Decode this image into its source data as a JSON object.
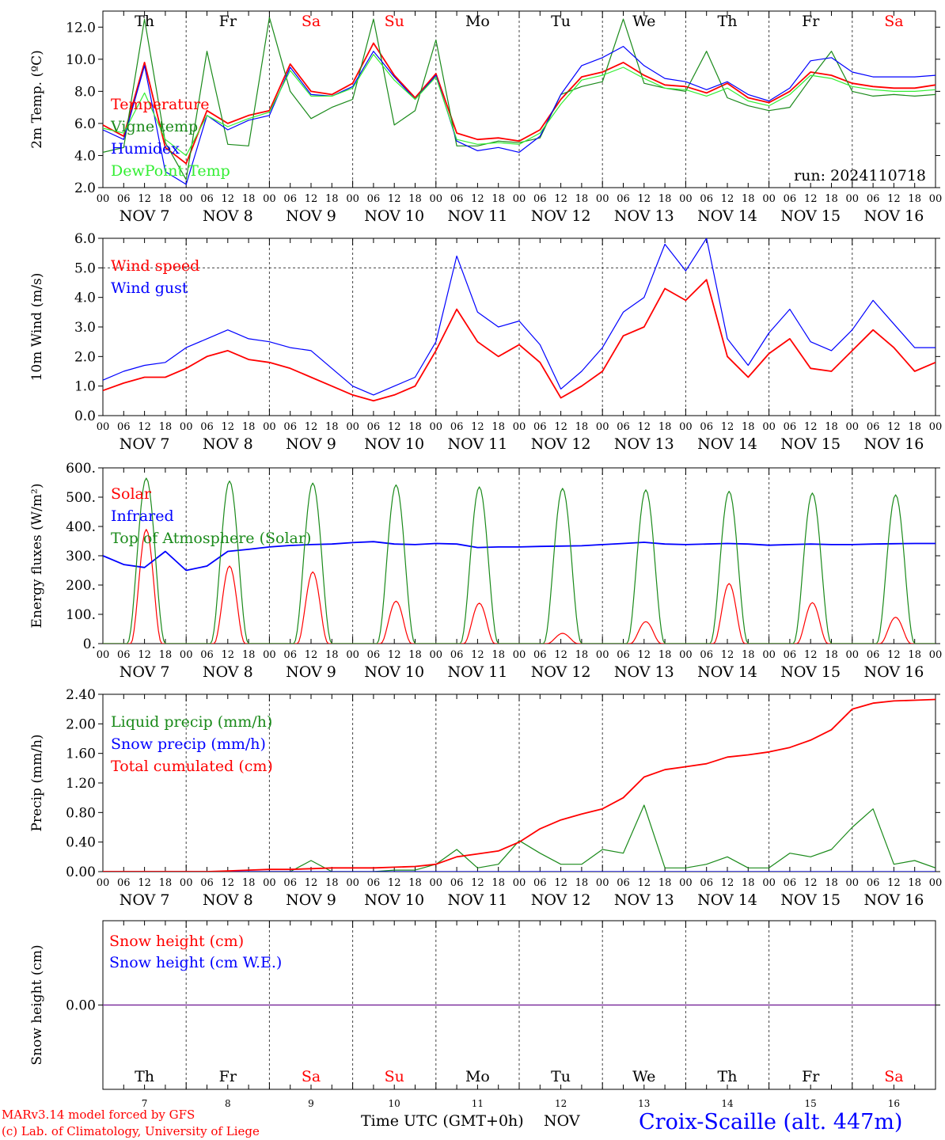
{
  "footer": {
    "credit_line1": "MARv3.14 model forced by GFS",
    "credit_line2": "(c) Lab. of Climatology, University of Liege",
    "xlabel": "Time UTC (GMT+0h)",
    "month": "NOV",
    "station": "Croix-Scaille (alt. 447m)"
  },
  "colors": {
    "red": "#ff0000",
    "green": "#1a8a1a",
    "blue": "#0000ff",
    "lightgreen": "#33ee33",
    "purple": "#7a2a9a",
    "axis": "#000000",
    "grid": "#555555"
  },
  "chart_data": [
    {
      "type": "line",
      "ylabel": "2m Temp. (ºC)",
      "ylim": [
        2.0,
        13.0
      ],
      "yticks": [
        "2.0",
        "4.0",
        "6.0",
        "8.0",
        "10.0",
        "12.0"
      ],
      "ytick_values": [
        2,
        4,
        6,
        8,
        10,
        12
      ],
      "dashed_lines": [],
      "annotation": "run: 2024110718",
      "x_hours": [
        0,
        6,
        12,
        18,
        24,
        30,
        36,
        42,
        48,
        54,
        60,
        66,
        72,
        78,
        84,
        90,
        96,
        102,
        108,
        114,
        120,
        126,
        132,
        138,
        144,
        150,
        156,
        162,
        168,
        174,
        180,
        186,
        192,
        198,
        204,
        210,
        216,
        222,
        228,
        234,
        240
      ],
      "series": [
        {
          "name": "Temperature",
          "color": "#ff0000",
          "values": [
            5.9,
            5.2,
            9.8,
            4.5,
            3.5,
            6.8,
            6.0,
            6.5,
            6.8,
            9.7,
            8.0,
            7.8,
            8.5,
            11.0,
            9.0,
            7.6,
            9.1,
            5.4,
            5.0,
            5.1,
            4.9,
            5.6,
            7.5,
            8.9,
            9.2,
            9.8,
            9.0,
            8.4,
            8.3,
            7.9,
            8.5,
            7.6,
            7.3,
            8.0,
            9.2,
            9.0,
            8.5,
            8.3,
            8.2,
            8.2,
            8.4
          ]
        },
        {
          "name": "Vigne temp",
          "color": "#1a8a1a",
          "values": [
            4.2,
            4.5,
            12.5,
            4.8,
            2.5,
            10.5,
            4.7,
            4.6,
            12.6,
            8.0,
            6.3,
            7.0,
            7.5,
            12.5,
            5.9,
            6.8,
            11.2,
            4.6,
            4.6,
            4.9,
            4.8,
            5.1,
            7.8,
            8.3,
            8.6,
            12.5,
            8.5,
            8.2,
            8.0,
            10.5,
            7.6,
            7.1,
            6.8,
            7.0,
            8.8,
            10.5,
            8.0,
            7.7,
            7.8,
            7.7,
            7.8
          ]
        },
        {
          "name": "Humidex",
          "color": "#0000ff",
          "values": [
            5.6,
            5.0,
            9.6,
            3.0,
            2.2,
            6.5,
            5.6,
            6.2,
            6.5,
            9.5,
            7.8,
            7.7,
            8.3,
            10.5,
            8.9,
            7.5,
            9.0,
            4.9,
            4.3,
            4.5,
            4.2,
            5.2,
            7.8,
            9.6,
            10.1,
            10.8,
            9.6,
            8.8,
            8.6,
            8.1,
            8.6,
            7.8,
            7.4,
            8.2,
            9.9,
            10.1,
            9.2,
            8.9,
            8.9,
            8.9,
            9.0
          ]
        },
        {
          "name": "DewPoint Temp",
          "color": "#33ee33",
          "values": [
            5.7,
            5.4,
            7.9,
            5.0,
            4.0,
            6.5,
            5.8,
            6.3,
            6.7,
            9.3,
            7.7,
            7.7,
            8.2,
            10.3,
            8.7,
            7.5,
            8.9,
            5.0,
            4.7,
            4.8,
            4.7,
            5.4,
            7.2,
            8.7,
            9.0,
            9.5,
            8.8,
            8.2,
            8.1,
            7.7,
            8.2,
            7.4,
            7.1,
            7.8,
            9.0,
            8.8,
            8.3,
            8.1,
            8.0,
            8.0,
            8.1
          ]
        }
      ]
    },
    {
      "type": "line",
      "ylabel": "10m Wind (m/s)",
      "ylim": [
        0.0,
        6.0
      ],
      "yticks": [
        "0.0",
        "1.0",
        "2.0",
        "3.0",
        "4.0",
        "5.0",
        "6.0"
      ],
      "ytick_values": [
        0,
        1,
        2,
        3,
        4,
        5,
        6
      ],
      "dashed_lines": [
        5.0
      ],
      "annotation": "",
      "x_hours": [
        0,
        6,
        12,
        18,
        24,
        30,
        36,
        42,
        48,
        54,
        60,
        66,
        72,
        78,
        84,
        90,
        96,
        102,
        108,
        114,
        120,
        126,
        132,
        138,
        144,
        150,
        156,
        162,
        168,
        174,
        180,
        186,
        192,
        198,
        204,
        210,
        216,
        222,
        228,
        234,
        240
      ],
      "series": [
        {
          "name": "Wind speed",
          "color": "#ff0000",
          "values": [
            0.85,
            1.1,
            1.3,
            1.3,
            1.6,
            2.0,
            2.2,
            1.9,
            1.8,
            1.6,
            1.3,
            1.0,
            0.7,
            0.5,
            0.7,
            1.0,
            2.2,
            3.6,
            2.5,
            2.0,
            2.4,
            1.8,
            0.6,
            1.0,
            1.5,
            2.7,
            3.0,
            4.3,
            3.9,
            4.6,
            2.0,
            1.3,
            2.1,
            2.6,
            1.6,
            1.5,
            2.2,
            2.9,
            2.3,
            1.5,
            1.8
          ]
        },
        {
          "name": "Wind gust",
          "color": "#0000ff",
          "values": [
            1.2,
            1.5,
            1.7,
            1.8,
            2.3,
            2.6,
            2.9,
            2.6,
            2.5,
            2.3,
            2.2,
            1.6,
            1.0,
            0.7,
            1.0,
            1.3,
            2.5,
            5.4,
            3.5,
            3.0,
            3.2,
            2.4,
            0.9,
            1.5,
            2.3,
            3.5,
            4.0,
            5.8,
            4.9,
            6.0,
            2.6,
            1.7,
            2.8,
            3.6,
            2.5,
            2.2,
            2.9,
            3.9,
            3.1,
            2.3,
            2.3
          ]
        }
      ]
    },
    {
      "type": "line",
      "ylabel": "Energy fluxes (W/m²)",
      "ylim": [
        0,
        600
      ],
      "yticks": [
        "0.",
        "100.",
        "200.",
        "300.",
        "400.",
        "500.",
        "600."
      ],
      "ytick_values": [
        0,
        100,
        200,
        300,
        400,
        500,
        600
      ],
      "dashed_lines": [],
      "annotation": "",
      "diurnal": true,
      "series": [
        {
          "name": "Solar",
          "color": "#ff0000",
          "daily_peak": [
            390,
            265,
            245,
            145,
            138,
            35,
            75,
            205,
            140,
            90
          ]
        },
        {
          "name": "Infrared",
          "color": "#0000ff",
          "x_hours": [
            0,
            6,
            12,
            18,
            24,
            30,
            36,
            42,
            48,
            54,
            60,
            66,
            72,
            78,
            84,
            90,
            96,
            102,
            108,
            114,
            120,
            126,
            132,
            138,
            144,
            150,
            156,
            162,
            168,
            174,
            180,
            186,
            192,
            198,
            204,
            210,
            216,
            222,
            228,
            234,
            240
          ],
          "values": [
            300,
            270,
            260,
            315,
            250,
            265,
            315,
            322,
            330,
            335,
            338,
            340,
            345,
            348,
            340,
            338,
            342,
            340,
            328,
            330,
            330,
            332,
            333,
            334,
            338,
            342,
            346,
            340,
            338,
            340,
            342,
            340,
            336,
            338,
            340,
            338,
            338,
            340,
            341,
            342,
            342
          ]
        },
        {
          "name": "Top of Atmosphere (Solar)",
          "color": "#1a8a1a",
          "daily_peak": [
            565,
            555,
            548,
            542,
            535,
            530,
            525,
            520,
            514,
            508
          ]
        }
      ]
    },
    {
      "type": "line",
      "ylabel": "Precip (mm/h)",
      "ylim": [
        0.0,
        2.4
      ],
      "yticks": [
        "0.00",
        "0.40",
        "0.80",
        "1.20",
        "1.60",
        "2.00",
        "2.40"
      ],
      "ytick_values": [
        0,
        0.4,
        0.8,
        1.2,
        1.6,
        2.0,
        2.4
      ],
      "dashed_lines": [],
      "annotation": "",
      "x_hours": [
        0,
        6,
        12,
        18,
        24,
        30,
        36,
        42,
        48,
        54,
        60,
        66,
        72,
        78,
        84,
        90,
        96,
        102,
        108,
        114,
        120,
        126,
        132,
        138,
        144,
        150,
        156,
        162,
        168,
        174,
        180,
        186,
        192,
        198,
        204,
        210,
        216,
        222,
        228,
        234,
        240
      ],
      "series": [
        {
          "name": "Liquid precip (mm/h)",
          "color": "#1a8a1a",
          "values": [
            0,
            0,
            0,
            0,
            0,
            0,
            0,
            0,
            0,
            0,
            0.15,
            0,
            0,
            0,
            0.02,
            0.02,
            0.1,
            0.3,
            0.05,
            0.1,
            0.42,
            0.25,
            0.1,
            0.1,
            0.3,
            0.25,
            0.9,
            0.05,
            0.05,
            0.1,
            0.2,
            0.05,
            0.05,
            0.25,
            0.2,
            0.3,
            0.6,
            0.85,
            0.1,
            0.15,
            0.05
          ]
        },
        {
          "name": "Snow precip (mm/h)",
          "color": "#0000ff",
          "values": [
            0,
            0,
            0,
            0,
            0,
            0,
            0,
            0,
            0,
            0,
            0,
            0,
            0,
            0,
            0,
            0,
            0,
            0,
            0,
            0,
            0,
            0,
            0,
            0,
            0,
            0,
            0,
            0,
            0,
            0,
            0,
            0,
            0,
            0,
            0,
            0,
            0,
            0,
            0,
            0,
            0
          ]
        },
        {
          "name": "Total cumulated (cm)",
          "color": "#ff0000",
          "values": [
            0,
            0,
            0,
            0,
            0,
            0,
            0.01,
            0.02,
            0.03,
            0.03,
            0.04,
            0.05,
            0.05,
            0.05,
            0.06,
            0.07,
            0.1,
            0.2,
            0.24,
            0.28,
            0.4,
            0.58,
            0.7,
            0.78,
            0.85,
            1.0,
            1.28,
            1.38,
            1.42,
            1.46,
            1.55,
            1.58,
            1.62,
            1.68,
            1.78,
            1.92,
            2.2,
            2.28,
            2.31,
            2.32,
            2.33
          ]
        }
      ]
    },
    {
      "type": "line",
      "ylabel": "Snow height (cm)",
      "ylim": [
        -1.0,
        1.0
      ],
      "yticks": [
        "0.00"
      ],
      "ytick_values": [
        0
      ],
      "dashed_lines": [],
      "annotation": "",
      "x_hours": [
        0,
        240
      ],
      "series": [
        {
          "name": "Snow height (cm)",
          "color": "#ff0000",
          "values": [
            0,
            0
          ]
        },
        {
          "name": "Snow height (cm W.E.)",
          "color": "#0000ff",
          "values": [
            0,
            0
          ]
        }
      ]
    }
  ],
  "days": [
    {
      "label": "Th",
      "weekend": false,
      "date": "7"
    },
    {
      "label": "Fr",
      "weekend": false,
      "date": "8"
    },
    {
      "label": "Sa",
      "weekend": true,
      "date": "9"
    },
    {
      "label": "Su",
      "weekend": true,
      "date": "10"
    },
    {
      "label": "Mo",
      "weekend": false,
      "date": "11"
    },
    {
      "label": "Tu",
      "weekend": false,
      "date": "12"
    },
    {
      "label": "We",
      "weekend": false,
      "date": "13"
    },
    {
      "label": "Th",
      "weekend": false,
      "date": "14"
    },
    {
      "label": "Fr",
      "weekend": false,
      "date": "15"
    },
    {
      "label": "Sa",
      "weekend": true,
      "date": "16"
    }
  ],
  "hour_ticks": [
    "00",
    "06",
    "12",
    "18"
  ],
  "date_labels": [
    "NOV  7",
    "NOV  8",
    "NOV  9",
    "NOV 10",
    "NOV 11",
    "NOV 12",
    "NOV 13",
    "NOV 14",
    "NOV 15",
    "NOV 16"
  ]
}
